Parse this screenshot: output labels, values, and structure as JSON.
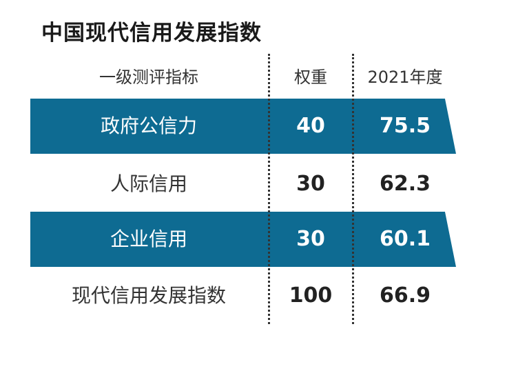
{
  "title": "中国现代信用发展指数",
  "columns": {
    "indicator": "一级测评指标",
    "weight": "权重",
    "year": "2021年度"
  },
  "rows": [
    {
      "indicator": "政府公信力",
      "weight": "40",
      "score": "75.5",
      "highlighted": true
    },
    {
      "indicator": "人际信用",
      "weight": "30",
      "score": "62.3",
      "highlighted": false
    },
    {
      "indicator": "企业信用",
      "weight": "30",
      "score": "60.1",
      "highlighted": true
    },
    {
      "indicator": "现代信用发展指数",
      "weight": "100",
      "score": "66.9",
      "highlighted": false
    }
  ],
  "colors": {
    "band": "#0e6b92",
    "band_text": "#ffffff",
    "text": "#222222"
  }
}
